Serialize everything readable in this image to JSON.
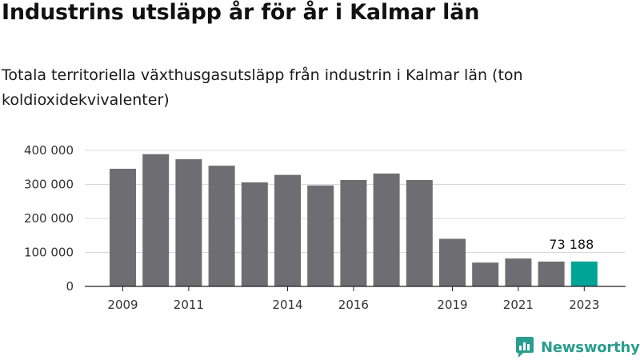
{
  "header": {
    "title": "Industrins utsläpp år för år i Kalmar län",
    "subtitle": "Totala territoriella växthusgasutsläpp från industrin i Kalmar län (ton koldioxidekvivalenter)"
  },
  "brand": {
    "name": "Newsworthy",
    "icon": "newsworthy-logo-icon",
    "color": "#2a9d8f"
  },
  "colors": {
    "bar": "#6e6d72",
    "highlight": "#00a497",
    "grid": "#d9d9d9",
    "axis": "#222222"
  },
  "chart_data": {
    "type": "bar",
    "title": "Industrins utsläpp år för år i Kalmar län",
    "subtitle": "Totala territoriella växthusgasutsläpp från industrin i Kalmar län (ton koldioxidekvivalenter)",
    "xlabel": "",
    "ylabel": "",
    "categories": [
      "2009",
      "2010",
      "2011",
      "2012",
      "2013",
      "2014",
      "2015",
      "2016",
      "2017",
      "2018",
      "2019",
      "2020",
      "2021",
      "2022",
      "2023"
    ],
    "x_tick_labels": [
      "2009",
      "2011",
      "2014",
      "2016",
      "2019",
      "2021",
      "2023"
    ],
    "values": [
      346000,
      389000,
      374000,
      355000,
      306000,
      328000,
      297000,
      313000,
      332000,
      313000,
      140000,
      70000,
      82000,
      73000,
      73188
    ],
    "highlight_index": 14,
    "highlight_label": "73 188",
    "ylim": [
      0,
      400000
    ],
    "y_ticks": [
      0,
      100000,
      200000,
      300000,
      400000
    ],
    "y_tick_labels": [
      "0",
      "100 000",
      "200 000",
      "300 000",
      "400 000"
    ],
    "grid": true
  }
}
